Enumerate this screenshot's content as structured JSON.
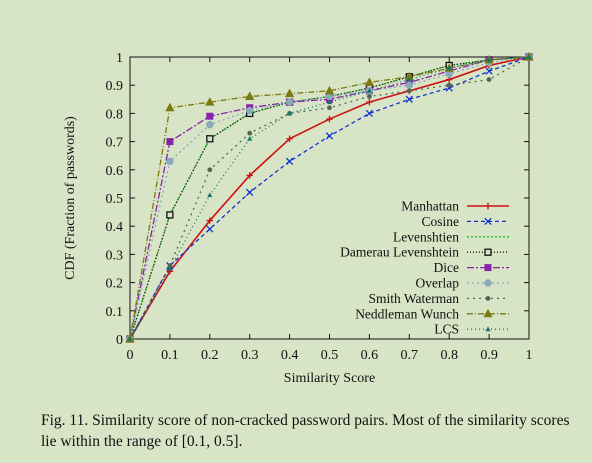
{
  "chart_data": {
    "type": "line",
    "title": "",
    "xlabel": "Similarity Score",
    "ylabel": "CDF (Fraction of passwords)",
    "xlim": [
      0,
      1
    ],
    "ylim": [
      0,
      1
    ],
    "x_ticks": [
      "0",
      "0.1",
      "0.2",
      "0.3",
      "0.4",
      "0.5",
      "0.6",
      "0.7",
      "0.8",
      "0.9",
      "1"
    ],
    "y_ticks": [
      "0",
      "0.1",
      "0.2",
      "0.3",
      "0.4",
      "0.5",
      "0.6",
      "0.7",
      "0.8",
      "0.9",
      "1"
    ],
    "x": [
      0,
      0.1,
      0.2,
      0.3,
      0.4,
      0.5,
      0.6,
      0.7,
      0.8,
      0.9,
      1.0
    ],
    "grid": false,
    "legend_position": "bottom-right",
    "series": [
      {
        "name": "Manhattan",
        "color": "#cc1111",
        "dash": "",
        "marker": "plus",
        "values": [
          0,
          0.24,
          0.42,
          0.58,
          0.71,
          0.78,
          0.84,
          0.88,
          0.92,
          0.97,
          1.0
        ]
      },
      {
        "name": "Cosine",
        "color": "#1133cc",
        "dash": "4,3",
        "marker": "cross",
        "values": [
          0,
          0.26,
          0.39,
          0.52,
          0.63,
          0.72,
          0.8,
          0.85,
          0.89,
          0.95,
          1.0
        ]
      },
      {
        "name": "Levenshtien",
        "color": "#22bb22",
        "dash": "2,2",
        "marker": "none",
        "values": [
          0,
          0.44,
          0.71,
          0.8,
          0.84,
          0.86,
          0.89,
          0.93,
          0.97,
          0.99,
          1.0
        ]
      },
      {
        "name": "Damerau Levenshtein",
        "color": "#111111",
        "dash": "1,2",
        "marker": "square",
        "values": [
          0,
          0.44,
          0.71,
          0.8,
          0.84,
          0.86,
          0.89,
          0.93,
          0.97,
          0.99,
          1.0
        ]
      },
      {
        "name": "Dice",
        "color": "#8822aa",
        "dash": "7,2,2,2",
        "marker": "filled-square",
        "values": [
          0,
          0.7,
          0.79,
          0.82,
          0.84,
          0.85,
          0.88,
          0.91,
          0.95,
          0.99,
          1.0
        ]
      },
      {
        "name": "Overlap",
        "color": "#88aabb",
        "dash": "2,3",
        "marker": "circle",
        "values": [
          0,
          0.63,
          0.76,
          0.81,
          0.84,
          0.86,
          0.88,
          0.9,
          0.94,
          0.98,
          1.0
        ]
      },
      {
        "name": "Smith Waterman",
        "color": "#556655",
        "dash": "2,4",
        "marker": "dot",
        "values": [
          0,
          0.26,
          0.6,
          0.73,
          0.8,
          0.82,
          0.86,
          0.88,
          0.9,
          0.92,
          1.0
        ]
      },
      {
        "name": "Neddleman Wunch",
        "color": "#7a7a10",
        "dash": "6,2,1,2",
        "marker": "triangle",
        "values": [
          0,
          0.82,
          0.84,
          0.86,
          0.87,
          0.88,
          0.91,
          0.93,
          0.96,
          0.99,
          1.0
        ]
      },
      {
        "name": "LCS",
        "color": "#117766",
        "dash": "1,3",
        "marker": "small-triangle",
        "values": [
          0,
          0.25,
          0.51,
          0.71,
          0.8,
          0.84,
          0.88,
          0.92,
          0.96,
          0.99,
          1.0
        ]
      }
    ]
  },
  "caption": "Fig. 11.   Similarity score of non-cracked password pairs. Most of the similarity scores lie within the range of [0.1, 0.5]."
}
